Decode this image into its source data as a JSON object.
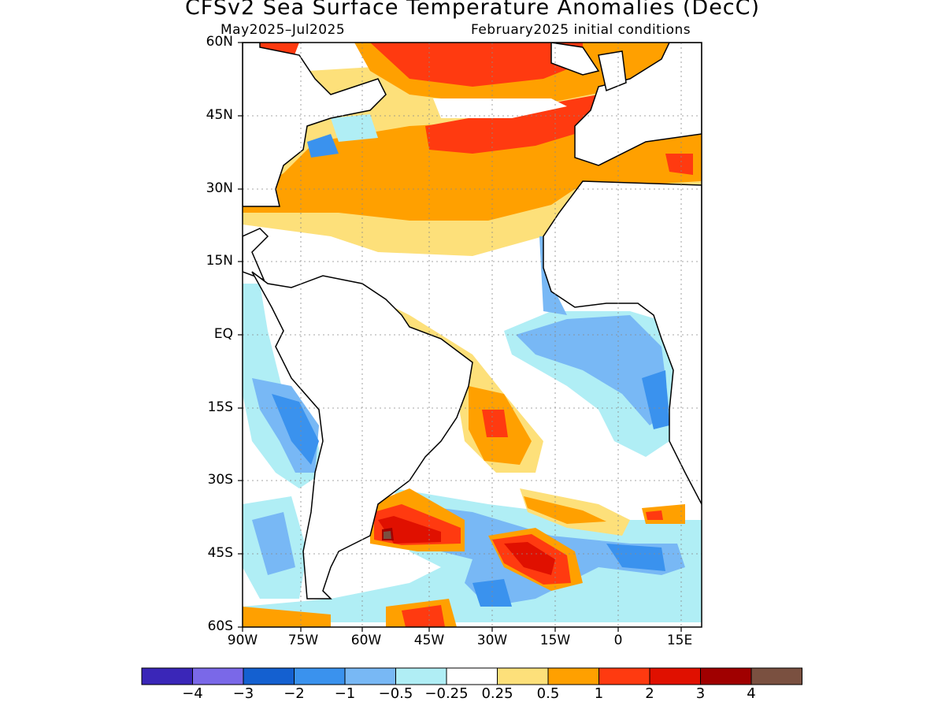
{
  "map": {
    "title": "CFSv2 Sea Surface Temperature Anomalies (DecC)",
    "period": "May2025–Jul2025",
    "initial_conditions": "February2025 initial conditions"
  },
  "axes": {
    "lat_labels": [
      "60N",
      "45N",
      "30N",
      "15N",
      "EQ",
      "15S",
      "30S",
      "45S",
      "60S"
    ],
    "lon_labels": [
      "90W",
      "75W",
      "60W",
      "45W",
      "30W",
      "15W",
      "0",
      "15E"
    ]
  },
  "colorbar": {
    "labels": [
      "−4",
      "−3",
      "−2",
      "−1",
      "−0.5",
      "−0.25",
      "0.25",
      "0.5",
      "1",
      "2",
      "3",
      "4"
    ],
    "colors": [
      "#3a26b8",
      "#7a68e8",
      "#1460d0",
      "#3a92ee",
      "#78b8f5",
      "#b0eef5",
      "#ffffff",
      "#fde07a",
      "#ffa000",
      "#ff3a10",
      "#e01000",
      "#a00000",
      "#7a5040"
    ]
  }
}
